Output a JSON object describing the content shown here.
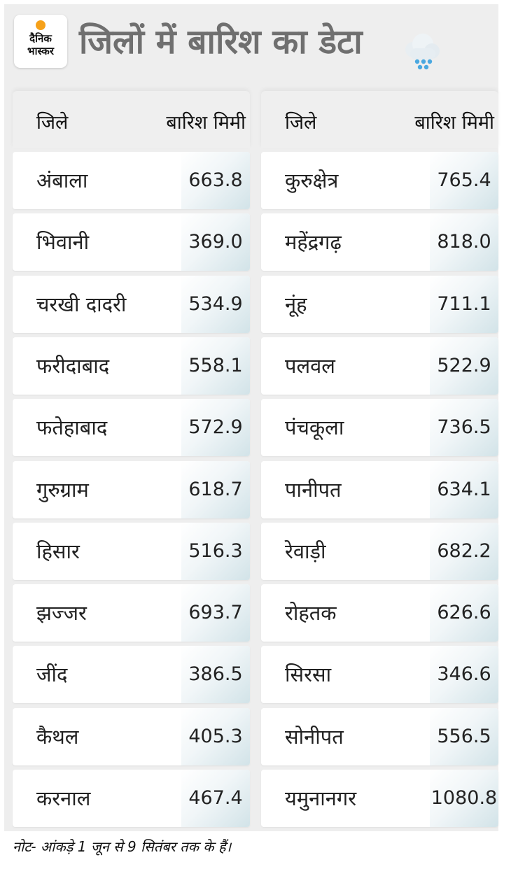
{
  "logo": {
    "line1": "दैनिक",
    "line2": "भास्कर",
    "accent": "#f6a11a"
  },
  "title": "जिलों में बारिश का डेटा",
  "weather_icon": "rain-cloud-icon",
  "headers": {
    "district": "जिले",
    "rain": "बारिश मिमी"
  },
  "left": [
    {
      "name": "अंबाला",
      "value": "663.8"
    },
    {
      "name": "भिवानी",
      "value": "369.0"
    },
    {
      "name": "चरखी दादरी",
      "value": "534.9"
    },
    {
      "name": "फरीदाबाद",
      "value": "558.1"
    },
    {
      "name": "फतेहाबाद",
      "value": "572.9"
    },
    {
      "name": "गुरुग्राम",
      "value": "618.7"
    },
    {
      "name": "हिसार",
      "value": "516.3"
    },
    {
      "name": "झज्जर",
      "value": "693.7"
    },
    {
      "name": "जींद",
      "value": "386.5"
    },
    {
      "name": "कैथल",
      "value": "405.3"
    },
    {
      "name": "करनाल",
      "value": "467.4"
    }
  ],
  "right": [
    {
      "name": "कुरुक्षेत्र",
      "value": "765.4"
    },
    {
      "name": "महेंद्रगढ़",
      "value": "818.0"
    },
    {
      "name": "नूंह",
      "value": "711.1"
    },
    {
      "name": "पलवल",
      "value": "522.9"
    },
    {
      "name": "पंचकूला",
      "value": "736.5"
    },
    {
      "name": "पानीपत",
      "value": "634.1"
    },
    {
      "name": "रेवाड़ी",
      "value": "682.2"
    },
    {
      "name": "रोहतक",
      "value": "626.6"
    },
    {
      "name": "सिरसा",
      "value": "346.6"
    },
    {
      "name": "सोनीपत",
      "value": "556.5"
    },
    {
      "name": "यमुनानगर",
      "value": "1080.8"
    }
  ],
  "note": "नोट- आंकड़े 1 जून से 9 सितंबर तक के हैं।"
}
